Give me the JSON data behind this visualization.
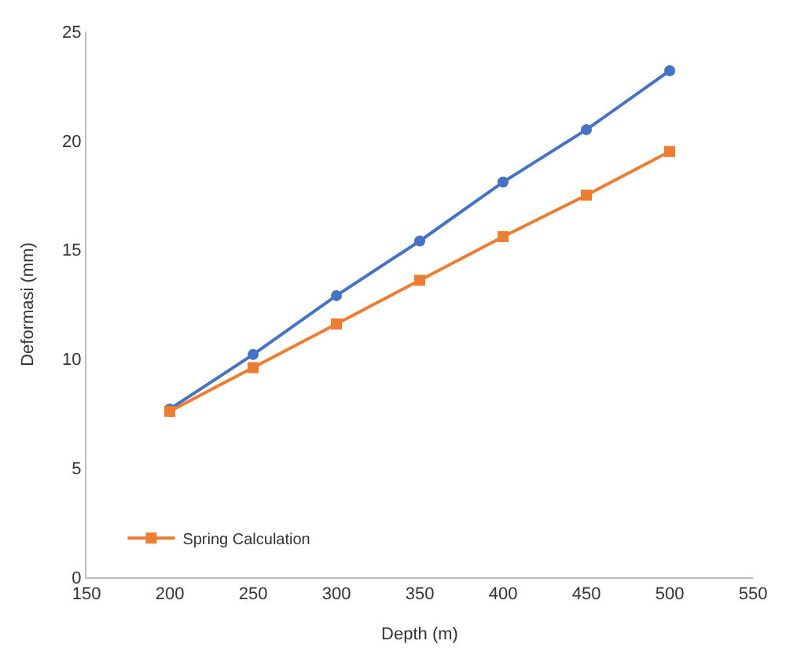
{
  "chart_data": {
    "type": "line",
    "xlabel": "Depth (m)",
    "ylabel": "Deformasi (mm)",
    "x": [
      200,
      250,
      300,
      350,
      400,
      450,
      500
    ],
    "series": [
      {
        "color": "#4472c4",
        "marker": "circle",
        "values": [
          7.7,
          10.2,
          12.9,
          15.4,
          18.1,
          20.5,
          23.2
        ]
      },
      {
        "name": "Spring Calculation",
        "color": "#ed7d31",
        "marker": "square",
        "values": [
          7.6,
          9.6,
          11.6,
          13.6,
          15.6,
          17.5,
          19.5
        ]
      }
    ],
    "xlim": [
      150,
      550
    ],
    "xticks": [
      150,
      200,
      250,
      300,
      350,
      400,
      450,
      500,
      550
    ],
    "ylim": [
      0,
      25
    ],
    "yticks": [
      0,
      5,
      10,
      15,
      20,
      25
    ],
    "legend": "bottom left",
    "line_style": "solid"
  }
}
